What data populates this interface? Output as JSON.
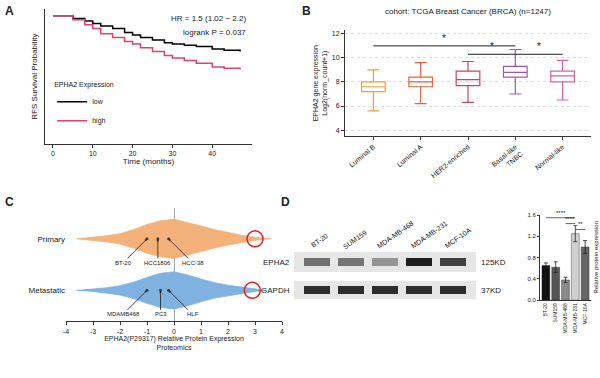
{
  "chart_data": [
    {
      "panel": "A",
      "type": "line",
      "x_label": "Time (months)",
      "y_label": "RFS Survival Probability",
      "legend_title": "EPHA2 Expression",
      "legend": "lower left",
      "annotations": [
        "HR = 1.5 (1.02 − 2.2)",
        "logrank P = 0.037"
      ],
      "x": [
        0,
        5,
        8,
        10,
        12,
        15,
        18,
        20,
        22,
        25,
        28,
        30,
        33,
        36,
        40,
        43,
        47
      ],
      "series": [
        {
          "name": "low",
          "color": "#000000",
          "line_style": "step",
          "values": [
            1,
            0.98,
            0.96,
            0.94,
            0.92,
            0.9,
            0.87,
            0.85,
            0.83,
            0.81,
            0.79,
            0.78,
            0.77,
            0.76,
            0.74,
            0.73,
            0.72
          ]
        },
        {
          "name": "high",
          "color": "#e0406a",
          "line_style": "step",
          "values": [
            1,
            0.97,
            0.93,
            0.9,
            0.86,
            0.83,
            0.8,
            0.78,
            0.75,
            0.72,
            0.69,
            0.67,
            0.65,
            0.63,
            0.6,
            0.59,
            0.58
          ]
        }
      ],
      "xlim": [
        -2,
        50
      ],
      "xticks": [
        0,
        10,
        20,
        30,
        40
      ],
      "ylim": [
        0,
        1.05
      ],
      "yticks": [],
      "tick_labels": "x",
      "grid": false
    },
    {
      "panel": "B",
      "type": "box",
      "title": "cohort: TCGA Breast Cancer (BRCA) (n=1247)",
      "y_label": "EPHA2 gene expression\nLog2(norm_count+1)",
      "categories": [
        "Luminal B",
        "Luminal A",
        "HER2-enriched",
        "Basal-like\nTNBC",
        "Normal-like"
      ],
      "colors": [
        "#f0a030",
        "#e8603c",
        "#d6405a",
        "#9b59b6",
        "#e0609a"
      ],
      "lowerfence": [
        5.6,
        6.2,
        6.3,
        7.0,
        6.5
      ],
      "q1": [
        7.2,
        7.6,
        7.7,
        8.4,
        8.0
      ],
      "median": [
        7.6,
        8.0,
        8.2,
        8.8,
        8.5
      ],
      "q3": [
        8.0,
        8.4,
        8.9,
        9.3,
        8.9
      ],
      "upperfence": [
        9.0,
        9.6,
        9.7,
        10.7,
        9.8
      ],
      "brackets": [
        {
          "from": 0,
          "to": 3,
          "y": 11.0,
          "label": "*"
        },
        {
          "from": 2,
          "to": 3,
          "y": 10.3,
          "label": "*"
        },
        {
          "from": 3,
          "to": 4,
          "y": 10.3,
          "label": "*"
        }
      ],
      "ylim": [
        3.5,
        12.3
      ],
      "yticks": [
        4,
        6,
        8,
        10,
        12
      ],
      "grid": true
    },
    {
      "panel": "C",
      "type": "violin",
      "x_label": "EPHA2(P29317) Relative Protein Expression\nProteomics",
      "xlim": [
        -4,
        4
      ],
      "xticks": [
        -4,
        -3,
        -2,
        -1,
        0,
        1,
        2,
        3,
        4
      ],
      "ylim": [
        -0.6,
        1.6
      ],
      "yticks": [
        {
          "value": 1,
          "label": "Primary"
        },
        {
          "value": 0,
          "label": "Metastatic"
        }
      ],
      "series": [
        {
          "name": "Primary",
          "color": "#f4b27a",
          "y": 1,
          "x": [
            -3.6,
            -3,
            -2.5,
            -2,
            -1.5,
            -1,
            -0.5,
            0,
            0.5,
            1,
            1.5,
            2,
            2.5,
            3,
            3.6
          ],
          "values": [
            0,
            0.03,
            0.06,
            0.1,
            0.18,
            0.28,
            0.35,
            0.38,
            0.32,
            0.25,
            0.18,
            0.12,
            0.07,
            0.03,
            0
          ]
        },
        {
          "name": "Metastatic",
          "color": "#7fb2e0",
          "y": 0,
          "x": [
            -3.6,
            -3,
            -2.5,
            -2,
            -1.5,
            -1,
            -0.5,
            0,
            0.5,
            1,
            1.5,
            2,
            2.5,
            3,
            3.4
          ],
          "values": [
            0,
            0.02,
            0.05,
            0.09,
            0.16,
            0.25,
            0.33,
            0.36,
            0.3,
            0.22,
            0.15,
            0.1,
            0.06,
            0.02,
            0
          ]
        }
      ],
      "labels": [
        {
          "text": "BT-20",
          "x": -1.0,
          "y": 1
        },
        {
          "text": "HCC1806",
          "x": -0.6,
          "y": 1
        },
        {
          "text": "HCC-38",
          "x": -0.2,
          "y": 1
        },
        {
          "text": "MDAMB468",
          "x": -1.0,
          "y": 0
        },
        {
          "text": "PC3",
          "x": -0.5,
          "y": 0
        },
        {
          "text": "HLF",
          "x": -0.2,
          "y": 0
        }
      ],
      "highlighted": {
        "color": "#e02020",
        "marker": "circle-open",
        "x": [
          3.0,
          2.9
        ],
        "y": [
          1,
          0
        ]
      },
      "grid": false
    },
    {
      "type": "bar",
      "y_label": "Relative protein expression",
      "categories": [
        "BT-20",
        "SUM159",
        "MDA-MB-468",
        "MDA-MB-231",
        "MCF-10A"
      ],
      "values": [
        0.65,
        0.62,
        0.38,
        1.25,
        1.0
      ],
      "errors": [
        0.05,
        0.1,
        0.05,
        0.15,
        0.12
      ],
      "colors": [
        "#111111",
        "#555555",
        "#8a8a8a",
        "#d0d0d0",
        "#666666"
      ],
      "brackets": [
        {
          "from": 0,
          "to": 3,
          "y": 1.55,
          "label": "****"
        },
        {
          "from": 2,
          "to": 3,
          "y": 1.44,
          "label": "****"
        },
        {
          "from": 3,
          "to": 4,
          "y": 1.33,
          "label": "**"
        }
      ],
      "ylim": [
        0,
        1.6
      ],
      "yticks": [
        {
          "value": 0,
          "label": "0.0"
        },
        0.4,
        0.8,
        1.2,
        1.6
      ],
      "grid": false
    }
  ],
  "blot": {
    "panel": "D",
    "lanes": [
      "BT-20",
      "SUM159",
      "MDA-MB-468",
      "MDA-MB-231",
      "MCF-10A"
    ],
    "rows": [
      {
        "label": "EPHA2",
        "size": "125KD"
      },
      {
        "label": "GAPDH",
        "size": "37KD"
      }
    ]
  }
}
